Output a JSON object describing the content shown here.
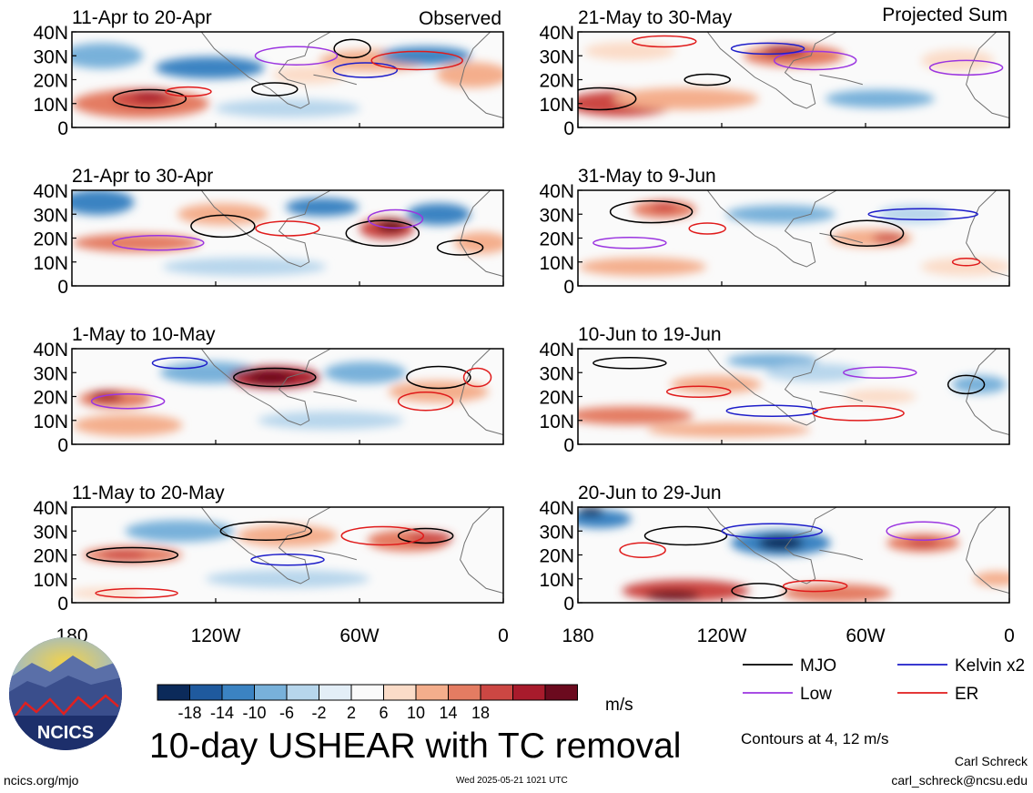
{
  "columns": {
    "left_label": "Observed",
    "right_label": "Projected Sum"
  },
  "panels": [
    {
      "title": "11-Apr to 20-Apr"
    },
    {
      "title": "21-Apr to 30-Apr"
    },
    {
      "title": "1-May to 10-May"
    },
    {
      "title": "11-May to 20-May"
    },
    {
      "title": "21-May to 30-May"
    },
    {
      "title": "31-May to 9-Jun"
    },
    {
      "title": "10-Jun to 19-Jun"
    },
    {
      "title": "20-Jun to 29-Jun"
    }
  ],
  "lat_ticks": [
    "40N",
    "30N",
    "20N",
    "10N",
    "0"
  ],
  "lon_ticks": [
    "180",
    "120W",
    "60W",
    "0"
  ],
  "colorbar": {
    "tick_labels": [
      "-18",
      "-14",
      "-10",
      "-6",
      "-2",
      "2",
      "6",
      "10",
      "14",
      "18"
    ],
    "colors": [
      "#0b2a5a",
      "#1f5a9e",
      "#3b83c2",
      "#78b1da",
      "#b7d6ec",
      "#e3eef7",
      "#fafafa",
      "#fbdcc8",
      "#f4ae8c",
      "#e47c62",
      "#cc4743",
      "#a81b2c",
      "#6b0a1e"
    ],
    "units": "m/s"
  },
  "legend": {
    "items": [
      {
        "label": "MJO",
        "color": "#000000"
      },
      {
        "label": "Kelvin x2",
        "color": "#1d1dc9"
      },
      {
        "label": "Low",
        "color": "#9b35e0"
      },
      {
        "label": "ER",
        "color": "#e01b1b"
      }
    ],
    "contours_note": "Contours at 4, 12 m/s"
  },
  "title": "10-day USHEAR with TC removal",
  "logo": {
    "text": "NCICS"
  },
  "footer": {
    "url": "ncics.org/mjo",
    "timestamp": "Wed 2025-05-21 1021 UTC",
    "author": "Carl Schreck",
    "email": "carl_schreck@ncsu.edu"
  },
  "chart_data": {
    "type": "heatmap",
    "variable": "10-day USHEAR with TC removal",
    "units": "m/s",
    "x_axis": {
      "ticks": [
        "180",
        "120W",
        "60W",
        "0"
      ],
      "range": [
        "180",
        "0"
      ]
    },
    "y_axis": {
      "ticks": [
        "40N",
        "30N",
        "20N",
        "10N",
        "0"
      ],
      "range": [
        "0",
        "40N"
      ]
    },
    "color_levels": [
      -18,
      -14,
      -10,
      -6,
      -2,
      2,
      6,
      10,
      14,
      18
    ],
    "contour_levels": [
      4,
      12
    ],
    "contour_series": [
      "MJO",
      "Kelvin x2",
      "Low",
      "ER"
    ],
    "panels": [
      {
        "title": "11-Apr to 20-Apr",
        "group": "Observed"
      },
      {
        "title": "21-Apr to 30-Apr",
        "group": "Observed"
      },
      {
        "title": "1-May to 10-May",
        "group": "Observed"
      },
      {
        "title": "11-May to 20-May",
        "group": "Observed"
      },
      {
        "title": "21-May to 30-May",
        "group": "Projected Sum"
      },
      {
        "title": "31-May to 9-Jun",
        "group": "Projected Sum"
      },
      {
        "title": "10-Jun to 19-Jun",
        "group": "Projected Sum"
      },
      {
        "title": "20-Jun to 29-Jun",
        "group": "Projected Sum"
      }
    ]
  }
}
